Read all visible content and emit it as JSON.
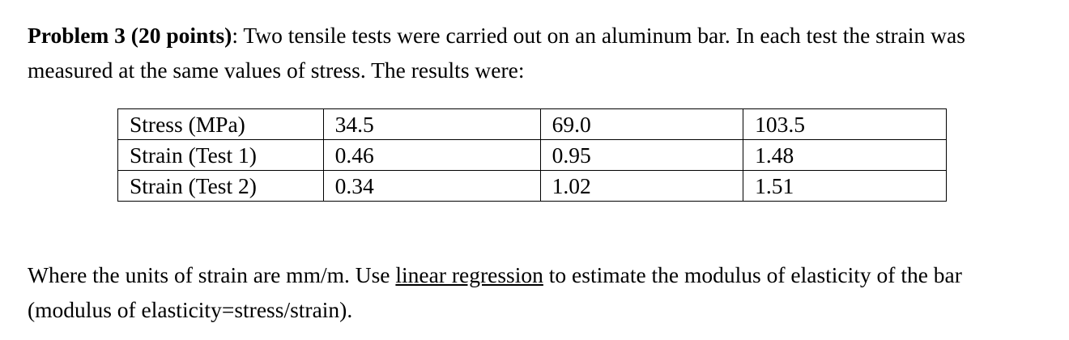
{
  "problem": {
    "heading": "Problem 3 (20 points)",
    "heading_suffix": ": Two tensile tests were carried out on an aluminum bar. In each test the strain was measured at the same values of stress. The results were:"
  },
  "table": {
    "rows": [
      {
        "label": "Stress (MPa)",
        "values": [
          "34.5",
          "69.0",
          "103.5"
        ]
      },
      {
        "label": "Strain (Test 1)",
        "values": [
          "0.46",
          "0.95",
          "1.48"
        ]
      },
      {
        "label": "Strain (Test 2)",
        "values": [
          "0.34",
          "1.02",
          "1.51"
        ]
      }
    ]
  },
  "footer": {
    "before_link": "Where the units of strain are mm/m. Use ",
    "underlined": "linear regression",
    "after_link": " to estimate the modulus of elasticity of the bar (modulus of elasticity=stress/strain)."
  }
}
